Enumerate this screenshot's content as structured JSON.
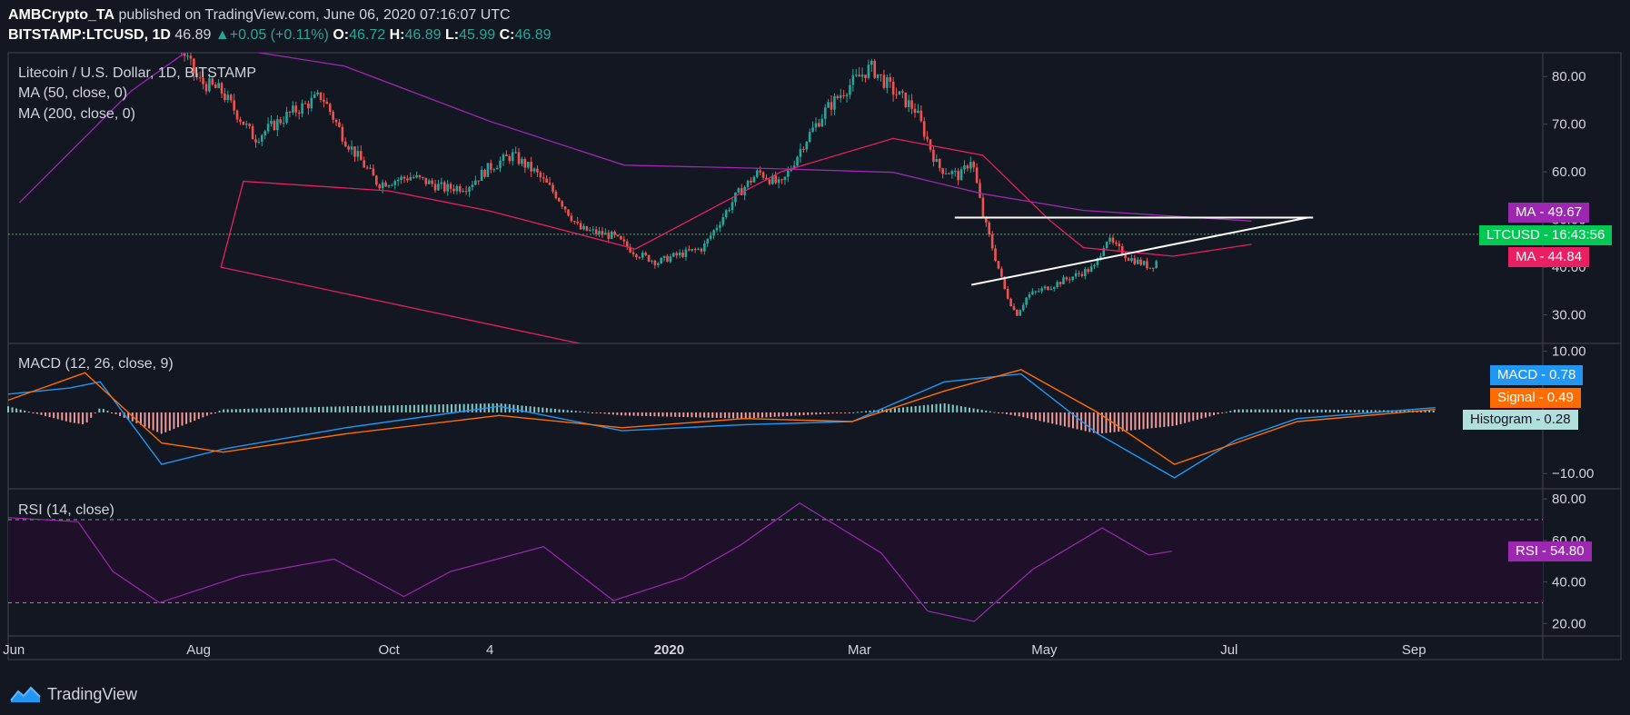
{
  "header": {
    "publisher": "AMBCrypto_TA",
    "published_text": "published on TradingView.com, June 06, 2020 07:16:07 UTC",
    "symbol": "BITSTAMP:LTCUSD, 1D",
    "last": "46.89",
    "change": "+0.05 (+0.11%)",
    "o_label": "O:",
    "o": "46.72",
    "h_label": "H:",
    "h": "46.89",
    "l_label": "L:",
    "l": "45.99",
    "c_label": "C:",
    "c": "46.89"
  },
  "legend": {
    "title": "Litecoin / U.S. Dollar, 1D, BITSTAMP",
    "ma50": "MA (50, close, 0)",
    "ma200": "MA (200, close, 0)",
    "macd": "MACD (12, 26, close, 9)",
    "rsi": "RSI (14, close)"
  },
  "tags": {
    "ma200_label": "MA",
    "ma200_value": "49.67",
    "price_label": "LTCUSD",
    "price_value": "16:43:56",
    "ma50_label": "MA",
    "ma50_value": "44.84",
    "macd_label": "MACD",
    "macd_value": "0.78",
    "signal_label": "Signal",
    "signal_value": "0.49",
    "hist_label": "Histogram",
    "hist_value": "0.28",
    "rsi_label": "RSI",
    "rsi_value": "54.80"
  },
  "footer": {
    "brand": "TradingView"
  },
  "colors": {
    "background": "#131722",
    "up": "#26a69a",
    "down": "#ef5350",
    "ma50": "#e91e63",
    "ma200": "#9c27b0",
    "macd": "#2196f3",
    "signal": "#ff6d00",
    "rsi": "#9c27b0",
    "price_line": "#4caf50"
  },
  "chart_data": [
    {
      "type": "candlestick",
      "title": "Litecoin / U.S. Dollar, 1D, BITSTAMP",
      "x_ticks": [
        "Jun",
        "Aug",
        "Oct",
        "4",
        "2020",
        "Mar",
        "May",
        "Jul",
        "Sep"
      ],
      "y_ticks": [
        "30.00",
        "40.00",
        "50.00",
        "60.00",
        "70.00",
        "80.00"
      ],
      "ylim": [
        24,
        85
      ],
      "current_price": 46.89,
      "series": [
        {
          "name": "MA (50, close, 0)",
          "last": 44.84,
          "points": [
            [
              2020.0,
              20
            ],
            [
              2019.6,
              40
            ],
            [
              2019.62,
              58
            ],
            [
              2019.75,
              56
            ],
            [
              2019.84,
              51.8
            ],
            [
              2019.97,
              43.8
            ],
            [
              2020.1,
              60
            ],
            [
              2020.2,
              67
            ],
            [
              2020.28,
              63.5
            ],
            [
              2020.34,
              49.8
            ],
            [
              2020.37,
              44.1
            ],
            [
              2020.45,
              42.3
            ],
            [
              2020.52,
              44.8
            ]
          ]
        },
        {
          "name": "MA (200, close, 0)",
          "last": 49.67,
          "points": [
            [
              2019.42,
              53.5
            ],
            [
              2019.52,
              77
            ],
            [
              2019.58,
              87
            ],
            [
              2019.71,
              82.2
            ],
            [
              2019.84,
              70.6
            ],
            [
              2019.96,
              61.4
            ],
            [
              2020.09,
              60.7
            ],
            [
              2020.2,
              59.9
            ],
            [
              2020.28,
              55.4
            ],
            [
              2020.37,
              51.9
            ],
            [
              2020.52,
              49.67
            ]
          ]
        }
      ],
      "annotations": [
        {
          "type": "horizontal_resistance",
          "value": 50.4,
          "from": "2020-04",
          "to": "2020-07"
        },
        {
          "type": "rising_trendline",
          "from": [
            2020.27,
            36.3
          ],
          "to": [
            2020.57,
            50.4
          ]
        }
      ]
    },
    {
      "type": "line",
      "title": "MACD (12, 26, close, 9)",
      "y_ticks": [
        "10.00",
        "-10.00"
      ],
      "ylim": [
        -12.5,
        11
      ],
      "series": [
        {
          "name": "MACD",
          "last": 0.78,
          "points": [
            [
              0,
              3
            ],
            [
              0.04,
              4
            ],
            [
              0.06,
              5
            ],
            [
              0.1,
              -8.5
            ],
            [
              0.14,
              -6
            ],
            [
              0.22,
              -2.5
            ],
            [
              0.32,
              1
            ],
            [
              0.4,
              -3
            ],
            [
              0.48,
              -2
            ],
            [
              0.55,
              -1.5
            ],
            [
              0.61,
              5
            ],
            [
              0.66,
              6.3
            ],
            [
              0.71,
              -3.5
            ],
            [
              0.76,
              -10.7
            ],
            [
              0.8,
              -4.5
            ],
            [
              0.84,
              -1
            ],
            [
              0.93,
              0.78
            ]
          ]
        },
        {
          "name": "Signal",
          "last": 0.49,
          "points": [
            [
              0,
              2
            ],
            [
              0.05,
              6.5
            ],
            [
              0.1,
              -5
            ],
            [
              0.14,
              -6.5
            ],
            [
              0.22,
              -3.5
            ],
            [
              0.32,
              -0.5
            ],
            [
              0.4,
              -2.5
            ],
            [
              0.48,
              -1
            ],
            [
              0.55,
              -1.5
            ],
            [
              0.61,
              3.5
            ],
            [
              0.66,
              7
            ],
            [
              0.71,
              0
            ],
            [
              0.76,
              -8.5
            ],
            [
              0.8,
              -5
            ],
            [
              0.84,
              -1.5
            ],
            [
              0.93,
              0.49
            ]
          ]
        }
      ],
      "histogram_last": 0.28
    },
    {
      "type": "line",
      "title": "RSI (14, close)",
      "y_ticks": [
        "20.00",
        "40.00",
        "60.00",
        "80.00"
      ],
      "ylim": [
        14,
        84
      ],
      "bands": [
        30,
        70
      ],
      "series": [
        {
          "name": "RSI",
          "last": 54.8,
          "points": [
            [
              0,
              71
            ],
            [
              0.06,
              69
            ],
            [
              0.09,
              45
            ],
            [
              0.13,
              30
            ],
            [
              0.2,
              43
            ],
            [
              0.28,
              51
            ],
            [
              0.34,
              33
            ],
            [
              0.38,
              45
            ],
            [
              0.46,
              57
            ],
            [
              0.52,
              31
            ],
            [
              0.58,
              42
            ],
            [
              0.63,
              58
            ],
            [
              0.68,
              78
            ],
            [
              0.75,
              54
            ],
            [
              0.79,
              26
            ],
            [
              0.83,
              21
            ],
            [
              0.88,
              46
            ],
            [
              0.94,
              66
            ],
            [
              0.98,
              53
            ],
            [
              1.0,
              54.8
            ]
          ]
        }
      ]
    }
  ]
}
